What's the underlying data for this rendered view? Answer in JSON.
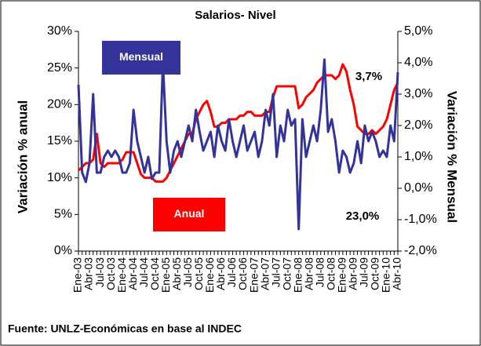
{
  "chart_data": {
    "type": "line",
    "title": "Salarios- Nivel",
    "y_label": "Variación % anual",
    "y2_label": "Variación % Mensual",
    "source": "Fuente: UNLZ-Económicas en base al INDEC",
    "annotations": [
      "3,7%",
      "23,0%"
    ],
    "categories": [
      "Ene-03",
      null,
      null,
      "Abr-03",
      null,
      null,
      "Jul-03",
      null,
      null,
      "Oct-03",
      null,
      null,
      "Ene-04",
      null,
      null,
      "Abr-04",
      null,
      null,
      "Jul-04",
      null,
      null,
      "Oct-04",
      null,
      null,
      "Ene-05",
      null,
      null,
      "Abr-05",
      null,
      null,
      "Jul-05",
      null,
      null,
      "Oct-05",
      null,
      null,
      "Ene-06",
      null,
      null,
      "Abr-06",
      null,
      null,
      "Jul-06",
      null,
      null,
      "Oct-06",
      null,
      null,
      "Ene-07",
      null,
      null,
      "Abr-07",
      null,
      null,
      "Jul-07",
      null,
      null,
      "Oct-07",
      null,
      null,
      "Ene-08",
      null,
      null,
      "Abr-08",
      null,
      null,
      "Jul-08",
      null,
      null,
      "Oct-08",
      null,
      null,
      "Ene-09",
      null,
      null,
      "Abr-09",
      null,
      null,
      "Jul-09",
      null,
      null,
      "Oct-09",
      null,
      null,
      "Ene-10",
      null,
      null,
      "Abr-10"
    ],
    "series": [
      {
        "name": "Anual",
        "color": "#ff0000",
        "axis": "y",
        "values": [
          11,
          11.5,
          12,
          12,
          12.5,
          16,
          12,
          11.5,
          12,
          12,
          12,
          12,
          12.5,
          13.5,
          13.5,
          13.5,
          12,
          10.5,
          10,
          10,
          10,
          9.5,
          9.5,
          9.5,
          10,
          11,
          12,
          13,
          14,
          15,
          16,
          16,
          18,
          19,
          20,
          20.5,
          19,
          17,
          17,
          17.5,
          17.5,
          18,
          18,
          18,
          18.5,
          18.5,
          19,
          19,
          18.5,
          18.5,
          18.5,
          19,
          19,
          21,
          22.5,
          22.5,
          22.5,
          22.5,
          22.5,
          22.5,
          19.5,
          20,
          21,
          21.5,
          22,
          23,
          23.5,
          24,
          24,
          24,
          23.5,
          24,
          25.5,
          24.5,
          22,
          20,
          17,
          16.5,
          16,
          16,
          16.5,
          16,
          16.5,
          17,
          18,
          20,
          22,
          23
        ]
      },
      {
        "name": "Mensual",
        "color": "#333399",
        "axis": "y2",
        "values": [
          3.3,
          0.5,
          0.2,
          0.8,
          3.0,
          0.5,
          0.5,
          1.0,
          1.2,
          1.0,
          1.2,
          1.0,
          0.5,
          0.5,
          0.8,
          2.5,
          1.5,
          1.0,
          0.5,
          1.0,
          0.3,
          0.5,
          0.5,
          4.0,
          1.5,
          0.5,
          1.2,
          1.5,
          1.0,
          1.5,
          2.0,
          1.5,
          2.5,
          1.8,
          1.2,
          1.5,
          1.8,
          1.0,
          2.0,
          1.5,
          1.2,
          2.2,
          1.5,
          1.0,
          1.5,
          2.0,
          1.2,
          1.5,
          1.8,
          1.0,
          1.5,
          2.5,
          2.0,
          3.0,
          1.0,
          2.0,
          1.5,
          2.5,
          2.0,
          2.2,
          -1.3,
          2.2,
          1.0,
          1.5,
          2.0,
          1.5,
          2.5,
          4.1,
          1.8,
          2.2,
          1.5,
          0.5,
          1.2,
          1.0,
          0.5,
          0.8,
          1.5,
          0.8,
          2.0,
          1.5,
          1.8,
          1.5,
          1.0,
          1.2,
          1.0,
          2.0,
          1.5,
          3.7
        ]
      }
    ],
    "ylim": [
      0,
      30
    ],
    "yticks": [
      {
        "value": 0,
        "label": "0%"
      },
      {
        "value": 5,
        "label": "5%"
      },
      {
        "value": 10,
        "label": "10%"
      },
      {
        "value": 15,
        "label": "15%"
      },
      {
        "value": 20,
        "label": "20%"
      },
      {
        "value": 25,
        "label": "25%"
      },
      {
        "value": 30,
        "label": "30%"
      }
    ],
    "y2lim": [
      -2,
      5
    ],
    "y2ticks": [
      {
        "value": -2,
        "label": "-2,0%"
      },
      {
        "value": -1,
        "label": "-1,0%"
      },
      {
        "value": 0,
        "label": "0,0%"
      },
      {
        "value": 1,
        "label": "1,0%"
      },
      {
        "value": 2,
        "label": "2,0%"
      },
      {
        "value": 3,
        "label": "3,0%"
      },
      {
        "value": 4,
        "label": "4,0%"
      },
      {
        "value": 5,
        "label": "5,0%"
      }
    ],
    "grid": false
  }
}
